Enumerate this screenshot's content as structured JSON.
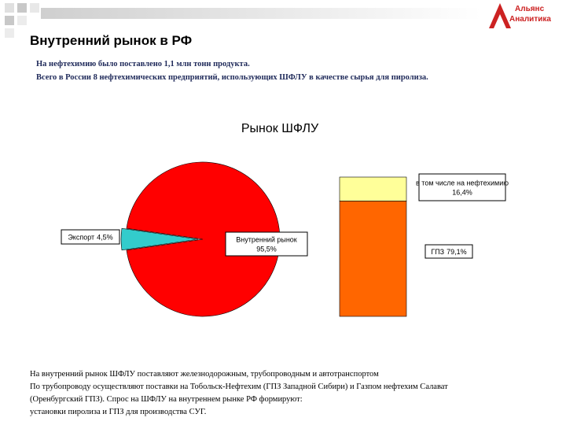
{
  "header": {
    "title": "Внутренний рынок в РФ",
    "notes": [
      "На нефтехимию было поставлено 1,1 млн тонн продукта.",
      "Всего в России 8 нефтехимических предприятий, использующих ШФЛУ в качестве сырья для пиролиза."
    ]
  },
  "logo": {
    "line1": "Альянс",
    "line2": "Аналитика"
  },
  "chart_data": {
    "type": "pie-of-bar",
    "title": "Рынок ШФЛУ",
    "pie": {
      "categories": [
        "Экспорт",
        "Внутренний рынок"
      ],
      "values": [
        4.5,
        95.5
      ],
      "value_labels": [
        "4,5%",
        "95,5%"
      ],
      "colors": [
        "#33cccc",
        "#ff0000"
      ]
    },
    "bar": {
      "categories": [
        "в том числе на нефтехимию",
        "ГПЗ"
      ],
      "values": [
        16.4,
        79.1
      ],
      "value_labels": [
        "16,4%",
        "79,1%"
      ],
      "colors": [
        "#ffff99",
        "#ff6600"
      ]
    }
  },
  "footer": {
    "lines": [
      "На внутренний рынок ШФЛУ поставляют железнодорожным, трубопроводным и автотранспортом",
      "По трубопроводу осуществляют поставки на Тобольск-Нефтехим (ГПЗ Западной Сибири) и Газпом нефтехим Салават",
      "(Оренбургский ГПЗ). Спрос на ШФЛУ на внутреннем рынке РФ формируют:",
      "установки пиролиза и ГПЗ для производства СУГ."
    ]
  }
}
